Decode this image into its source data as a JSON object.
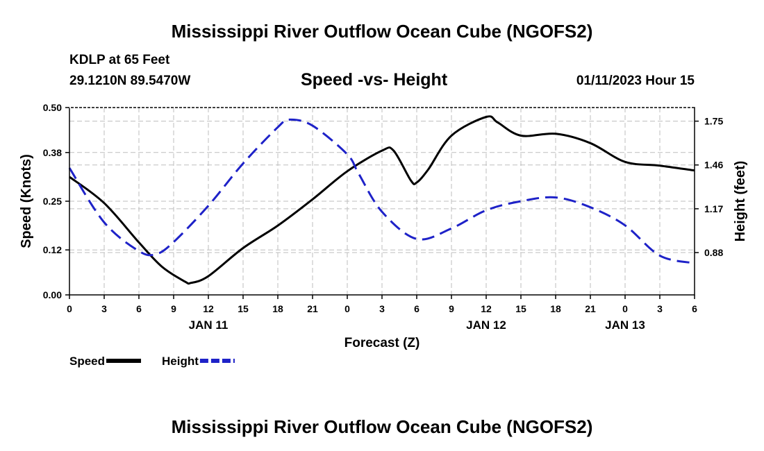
{
  "header": {
    "title": "Mississippi River Outflow Ocean Cube (NGOFS2)",
    "station": "KDLP at 65 Feet",
    "location": "29.1210N  89.5470W",
    "datetime": "01/11/2023 Hour 15",
    "footer_title": "Mississippi River Outflow Ocean Cube (NGOFS2)"
  },
  "chart_data": {
    "type": "line",
    "title": "Speed -vs- Height",
    "xlabel": "Forecast (Z)",
    "ylabel_left": "Speed (Knots)",
    "ylabel_right": "Height (feet)",
    "x_range": [
      0,
      54
    ],
    "x_ticks": [
      0,
      3,
      6,
      9,
      12,
      15,
      18,
      21,
      24,
      27,
      30,
      33,
      36,
      39,
      42,
      45,
      48,
      51,
      54
    ],
    "x_tick_labels": [
      "0",
      "3",
      "6",
      "9",
      "12",
      "15",
      "18",
      "21",
      "0",
      "3",
      "6",
      "9",
      "12",
      "15",
      "18",
      "21",
      "0",
      "3",
      "6"
    ],
    "date_labels": [
      {
        "x": 12,
        "label": "JAN 11"
      },
      {
        "x": 36,
        "label": "JAN 12"
      },
      {
        "x": 48,
        "label": "JAN 13"
      }
    ],
    "y_left": {
      "range": [
        0,
        0.5
      ],
      "ticks": [
        0.0,
        0.12,
        0.25,
        0.38,
        0.5
      ],
      "tick_labels": [
        "0.00",
        "0.12",
        "0.25",
        "0.38",
        "0.50"
      ]
    },
    "y_right": {
      "range": [
        0.6,
        1.84
      ],
      "ticks": [
        0.88,
        1.17,
        1.46,
        1.75
      ],
      "tick_labels": [
        "0.88",
        "1.17",
        "1.46",
        "1.75"
      ]
    },
    "grid": true,
    "series": [
      {
        "name": "Speed",
        "axis": "left",
        "color": "#000000",
        "dash": "solid",
        "x": [
          0,
          3,
          6,
          8,
          10,
          10.5,
          12,
          15,
          18,
          21,
          24,
          27,
          28,
          29.5,
          30,
          31,
          33,
          36,
          37,
          39,
          42,
          45,
          48,
          51,
          54
        ],
        "y": [
          0.315,
          0.245,
          0.14,
          0.075,
          0.035,
          0.032,
          0.05,
          0.125,
          0.185,
          0.255,
          0.33,
          0.385,
          0.385,
          0.305,
          0.3,
          0.335,
          0.425,
          0.475,
          0.46,
          0.425,
          0.43,
          0.405,
          0.355,
          0.345,
          0.332
        ]
      },
      {
        "name": "Height",
        "axis": "right",
        "color": "#1e22c8",
        "dash": "dashed",
        "x": [
          0,
          3,
          6,
          7.5,
          9,
          12,
          15,
          18,
          19,
          21,
          24,
          25,
          27,
          30,
          33,
          36,
          39,
          42,
          45,
          48,
          51,
          54
        ],
        "y": [
          1.44,
          1.08,
          0.89,
          0.87,
          0.95,
          1.19,
          1.47,
          1.71,
          1.76,
          1.72,
          1.53,
          1.4,
          1.15,
          0.97,
          1.04,
          1.16,
          1.22,
          1.245,
          1.18,
          1.06,
          0.86,
          0.81
        ]
      }
    ],
    "legend": [
      {
        "label": "Speed",
        "color": "#000000",
        "dash": "solid"
      },
      {
        "label": "Height",
        "color": "#1e22c8",
        "dash": "dashed"
      }
    ],
    "legend_position": "bottom-left"
  }
}
